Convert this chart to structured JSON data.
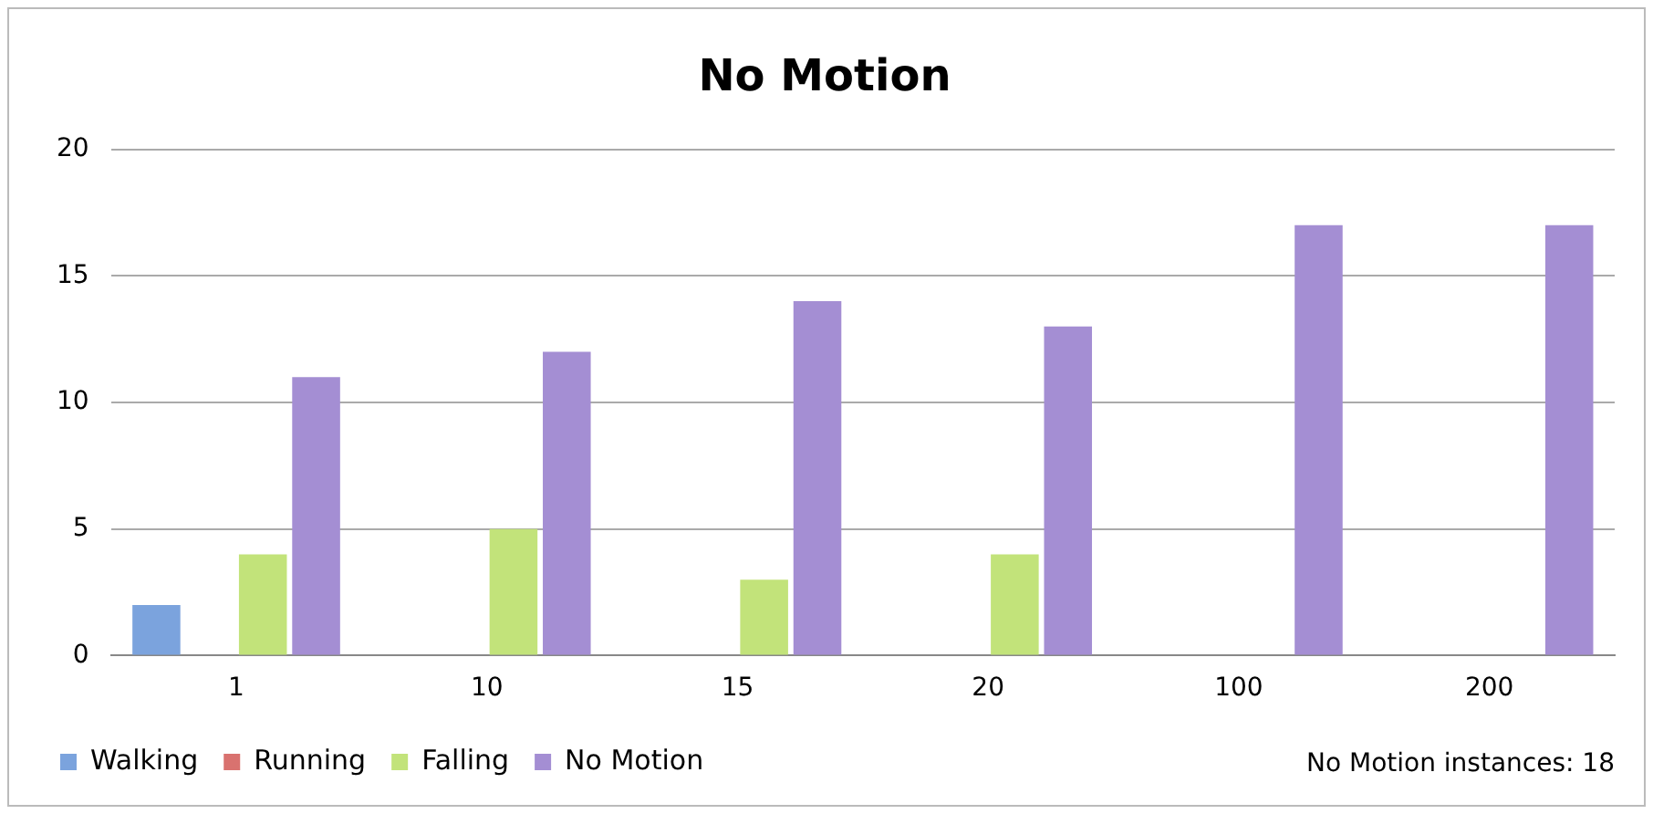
{
  "chart_data": {
    "type": "bar",
    "title": "No Motion",
    "categories": [
      "1",
      "10",
      "15",
      "20",
      "100",
      "200"
    ],
    "series": [
      {
        "name": "Walking",
        "color": "#7ba3dd",
        "values": [
          2,
          0,
          0,
          0,
          0,
          0
        ]
      },
      {
        "name": "Running",
        "color": "#d9726f",
        "values": [
          0,
          0,
          0,
          0,
          0,
          0
        ]
      },
      {
        "name": "Falling",
        "color": "#c2e37a",
        "values": [
          4,
          5,
          3,
          4,
          0,
          0
        ]
      },
      {
        "name": "No Motion",
        "color": "#a48ed3",
        "values": [
          11,
          12,
          14,
          13,
          17,
          17
        ]
      }
    ],
    "ylim": [
      0,
      20
    ],
    "yticks": [
      0,
      5,
      10,
      15,
      20
    ],
    "grid": "y",
    "legend": "bottom",
    "annotations": [
      "No Motion instances: 18"
    ]
  }
}
